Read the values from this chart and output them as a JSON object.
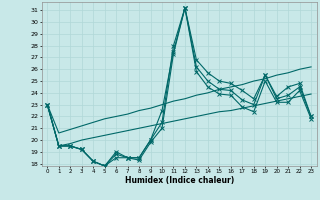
{
  "xlabel": "Humidex (Indice chaleur)",
  "background_color": "#c8e8e8",
  "line_color": "#006868",
  "grid_color": "#b0d8d8",
  "x": [
    0,
    1,
    2,
    3,
    4,
    5,
    6,
    7,
    8,
    9,
    10,
    11,
    12,
    13,
    14,
    15,
    16,
    17,
    18,
    19,
    20,
    21,
    22,
    23
  ],
  "line1": [
    23,
    19.5,
    19.5,
    19.2,
    18.2,
    17.8,
    19.0,
    18.5,
    18.5,
    20.0,
    21.5,
    28.0,
    31.2,
    26.8,
    25.7,
    25.0,
    24.8,
    24.2,
    23.5,
    25.5,
    23.7,
    24.5,
    24.8,
    22.0
  ],
  "line2": [
    23,
    19.5,
    19.5,
    19.2,
    18.2,
    17.8,
    18.8,
    18.5,
    18.5,
    20.0,
    22.5,
    27.5,
    31.2,
    26.2,
    25.0,
    24.3,
    24.2,
    23.4,
    23.0,
    25.5,
    23.5,
    23.8,
    24.5,
    22.0
  ],
  "line3": [
    23,
    19.5,
    19.5,
    19.2,
    18.2,
    17.8,
    18.5,
    18.5,
    18.3,
    19.8,
    21.0,
    27.3,
    31.2,
    25.8,
    24.5,
    23.9,
    23.8,
    22.8,
    22.4,
    25.0,
    23.2,
    23.2,
    24.2,
    21.8
  ],
  "trend1": [
    23.0,
    20.6,
    20.9,
    21.2,
    21.5,
    21.8,
    22.0,
    22.2,
    22.5,
    22.7,
    23.0,
    23.3,
    23.5,
    23.8,
    24.0,
    24.3,
    24.5,
    24.7,
    25.0,
    25.2,
    25.5,
    25.7,
    26.0,
    26.2
  ],
  "trend2": [
    23.0,
    19.5,
    19.7,
    20.0,
    20.2,
    20.4,
    20.6,
    20.8,
    21.0,
    21.2,
    21.4,
    21.6,
    21.8,
    22.0,
    22.2,
    22.4,
    22.5,
    22.7,
    22.9,
    23.1,
    23.3,
    23.5,
    23.7,
    23.9
  ],
  "ylim": [
    17.8,
    31.7
  ],
  "xlim": [
    -0.5,
    23.5
  ],
  "yticks": [
    18,
    19,
    20,
    21,
    22,
    23,
    24,
    25,
    26,
    27,
    28,
    29,
    30,
    31
  ],
  "xticks": [
    0,
    1,
    2,
    3,
    4,
    5,
    6,
    7,
    8,
    9,
    10,
    11,
    12,
    13,
    14,
    15,
    16,
    17,
    18,
    19,
    20,
    21,
    22,
    23
  ]
}
